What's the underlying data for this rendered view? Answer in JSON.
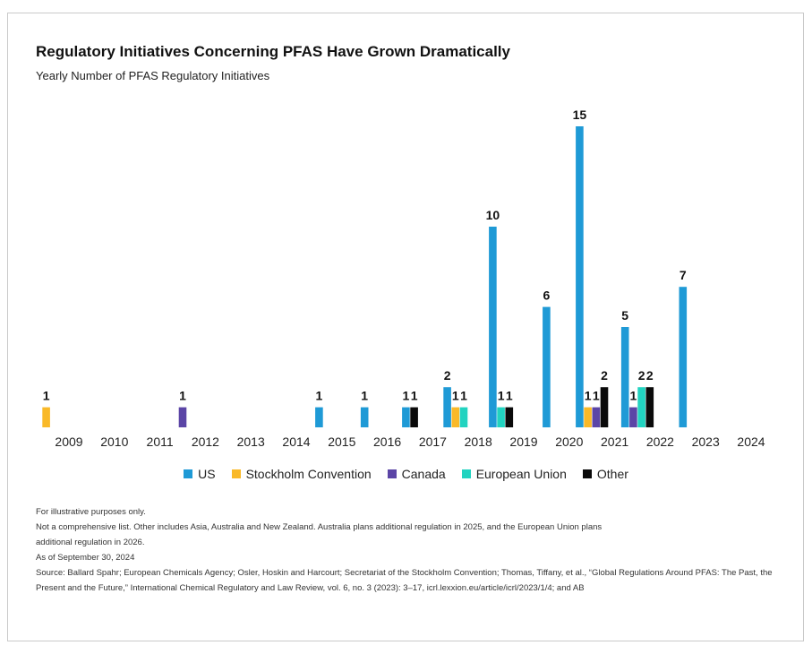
{
  "title": "Regulatory Initiatives Concerning PFAS Have Grown Dramatically",
  "subtitle": "Yearly Number of PFAS Regulatory Initiatives",
  "colors": {
    "US": "#1f9ad6",
    "Stockholm Convention": "#f9b928",
    "Canada": "#5b45a6",
    "European Union": "#22d3c0",
    "Other": "#0a0a0a"
  },
  "chart_data": {
    "type": "bar",
    "title": "Regulatory Initiatives Concerning PFAS Have Grown Dramatically",
    "subtitle": "Yearly Number of PFAS Regulatory Initiatives",
    "xlabel": "",
    "ylabel": "",
    "grid": false,
    "legend_position": "bottom",
    "categories": [
      "2009",
      "2010",
      "2011",
      "2012",
      "2013",
      "2014",
      "2015",
      "2016",
      "2017",
      "2018",
      "2019",
      "2020",
      "2021",
      "2022",
      "2023",
      "2024"
    ],
    "series": [
      {
        "name": "US",
        "values": [
          0,
          0,
          0,
          0,
          0,
          0,
          1,
          1,
          1,
          2,
          10,
          6,
          15,
          5,
          7,
          0
        ]
      },
      {
        "name": "Stockholm Convention",
        "values": [
          1,
          0,
          0,
          0,
          0,
          0,
          0,
          0,
          0,
          1,
          0,
          0,
          1,
          0,
          0,
          0
        ]
      },
      {
        "name": "Canada",
        "values": [
          0,
          0,
          0,
          1,
          0,
          0,
          0,
          0,
          0,
          0,
          0,
          0,
          1,
          1,
          0,
          0
        ]
      },
      {
        "name": "European Union",
        "values": [
          0,
          0,
          0,
          0,
          0,
          0,
          0,
          0,
          0,
          1,
          1,
          0,
          0,
          2,
          0,
          0
        ]
      },
      {
        "name": "Other",
        "values": [
          0,
          0,
          0,
          0,
          0,
          0,
          0,
          0,
          1,
          0,
          1,
          0,
          2,
          2,
          0,
          0
        ]
      }
    ],
    "legend": [
      "US",
      "Stockholm Convention",
      "Canada",
      "European Union",
      "Other"
    ]
  },
  "notes": [
    "For illustrative purposes only.",
    "Not a comprehensive list. Other includes Asia, Australia and New Zealand. Australia plans additional regulation in 2025, and the European Union plans",
    "additional regulation in 2026.",
    "As of September 30, 2024",
    "Source: Ballard Spahr; European Chemicals Agency; Osler, Hoskin and Harcourt; Secretariat of the Stockholm Convention; Thomas, Tiffany, et al., “Global Regulations Around PFAS: The Past, the",
    "Present and the Future,” International Chemical Regulatory and Law Review, vol. 6, no. 3 (2023): 3–17, icrl.lexxion.eu/article/icrl/2023/1/4; and AB"
  ]
}
